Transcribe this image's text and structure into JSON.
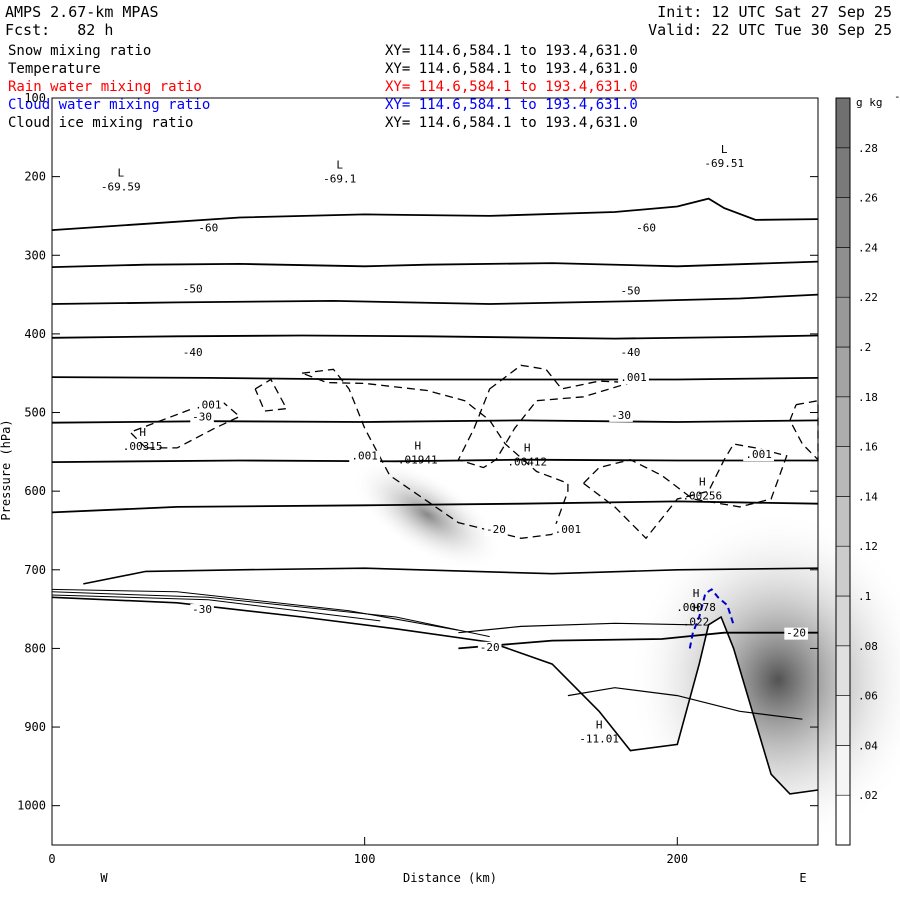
{
  "header": {
    "title": "AMPS 2.67-km MPAS",
    "init": "Init: 12 UTC Sat 27 Sep 25",
    "fcst": "Fcst:   82 h",
    "valid": "Valid: 22 UTC Tue 30 Sep 25"
  },
  "fields": [
    {
      "name": "Snow mixing ratio",
      "xy": "XY= 114.6,584.1 to 193.4,631.0",
      "color": "#000000"
    },
    {
      "name": "Temperature",
      "xy": "XY= 114.6,584.1 to 193.4,631.0",
      "color": "#000000"
    },
    {
      "name": "Rain water mixing ratio",
      "xy": "XY= 114.6,584.1 to 193.4,631.0",
      "color": "#ff0000"
    },
    {
      "name": "Cloud water mixing ratio",
      "xy": "XY= 114.6,584.1 to 193.4,631.0",
      "color": "#0000ff"
    },
    {
      "name": "Cloud ice mixing ratio",
      "xy": "XY= 114.6,584.1 to 193.4,631.0",
      "color": "#000000"
    }
  ],
  "chart_data": {
    "type": "cross-section contour",
    "xlabel": "Distance (km)",
    "ylabel": "Pressure (hPa)",
    "xlim": [
      0,
      245
    ],
    "ylim": [
      1050,
      100
    ],
    "x_ticks": [
      "0",
      "100",
      "200"
    ],
    "x_tick_values": [
      0,
      100,
      200
    ],
    "y_ticks": [
      "100",
      "200",
      "300",
      "400",
      "500",
      "600",
      "700",
      "800",
      "900",
      "1000"
    ],
    "y_tick_values": [
      100,
      200,
      300,
      400,
      500,
      600,
      700,
      800,
      900,
      1000
    ],
    "left_end": "W",
    "right_end": "E",
    "colorbar": {
      "unit": "g kg",
      "unit_sup": "-1",
      "ticks": [
        ".02",
        ".04",
        ".06",
        ".08",
        ".1",
        ".12",
        ".14",
        ".16",
        ".18",
        ".2",
        ".22",
        ".24",
        ".26",
        ".28"
      ],
      "tick_values": [
        0.02,
        0.04,
        0.06,
        0.08,
        0.1,
        0.12,
        0.14,
        0.16,
        0.18,
        0.2,
        0.22,
        0.24,
        0.26,
        0.28
      ],
      "max": 0.3,
      "colors": [
        "#ffffff",
        "#f5f5f5",
        "#ebebeb",
        "#e0e0e0",
        "#d6d6d6",
        "#cccccc",
        "#c2c2c2",
        "#b8b8b8",
        "#adadad",
        "#a3a3a3",
        "#999999",
        "#8f8f8f",
        "#858585",
        "#7a7a7a",
        "#707070"
      ]
    },
    "temperature_isotherms": [
      {
        "label": "-60",
        "points": [
          [
            0,
            315
          ],
          [
            30,
            312
          ],
          [
            60,
            311
          ],
          [
            100,
            314
          ],
          [
            120,
            312
          ],
          [
            160,
            310
          ],
          [
            200,
            314
          ],
          [
            245,
            308
          ]
        ]
      },
      {
        "label": "-50",
        "points": [
          [
            0,
            405
          ],
          [
            40,
            403
          ],
          [
            80,
            402
          ],
          [
            120,
            403
          ],
          [
            180,
            406
          ],
          [
            220,
            404
          ],
          [
            245,
            402
          ]
        ]
      },
      {
        "label": "-40",
        "points": [
          [
            0,
            513
          ],
          [
            50,
            511
          ],
          [
            100,
            512
          ],
          [
            150,
            510
          ],
          [
            200,
            512
          ],
          [
            245,
            510
          ]
        ]
      },
      {
        "label": "",
        "points": [
          [
            0,
            563
          ],
          [
            60,
            561
          ],
          [
            110,
            562
          ],
          [
            150,
            560
          ],
          [
            200,
            561
          ],
          [
            245,
            561
          ]
        ]
      },
      {
        "label": "-30",
        "points": [
          [
            0,
            627
          ],
          [
            40,
            620
          ],
          [
            100,
            618
          ],
          [
            150,
            616
          ],
          [
            200,
            613
          ],
          [
            245,
            616
          ]
        ]
      },
      {
        "label": "-20",
        "points": [
          [
            130,
            800
          ],
          [
            160,
            790
          ],
          [
            195,
            788
          ],
          [
            215,
            780
          ],
          [
            245,
            780
          ]
        ]
      }
    ],
    "ice_contour_labels": [
      {
        "text": ".001",
        "x": 50,
        "p": 495
      },
      {
        "text": ".001",
        "x": 100,
        "p": 560
      },
      {
        "text": ".001",
        "x": 186,
        "p": 460
      },
      {
        "text": ".001",
        "x": 165,
        "p": 653
      },
      {
        "text": ".001",
        "x": 226,
        "p": 558
      }
    ],
    "extrema": [
      {
        "kind": "L",
        "value": "-69.59",
        "x": 22,
        "p": 215
      },
      {
        "kind": "L",
        "value": "-69.1",
        "x": 92,
        "p": 205
      },
      {
        "kind": "L",
        "value": "-69.51",
        "x": 215,
        "p": 185
      },
      {
        "kind": "H",
        "value": ".00315",
        "x": 29,
        "p": 545
      },
      {
        "kind": "H",
        "value": ".01941",
        "x": 117,
        "p": 562
      },
      {
        "kind": "H",
        "value": ".00412",
        "x": 152,
        "p": 565
      },
      {
        "kind": "H",
        "value": ".00256",
        "x": 208,
        "p": 608
      },
      {
        "kind": "H",
        "value": ".00078",
        "x": 206,
        "p": 750
      },
      {
        "kind": "H",
        "value": ".022",
        "x": 206,
        "p": 768
      },
      {
        "kind": "H",
        "value": "-11.01",
        "x": 175,
        "p": 917
      }
    ],
    "terrain_labels": [
      {
        "text": "-20",
        "x": 140,
        "p": 803
      },
      {
        "text": "-20",
        "x": 238,
        "p": 785
      },
      {
        "text": "-30",
        "x": 48,
        "p": 755
      }
    ],
    "snow_max": [
      {
        "x": 120,
        "p": 630,
        "value": 0.18
      },
      {
        "x": 245,
        "p": 840,
        "value": 0.26
      }
    ]
  }
}
